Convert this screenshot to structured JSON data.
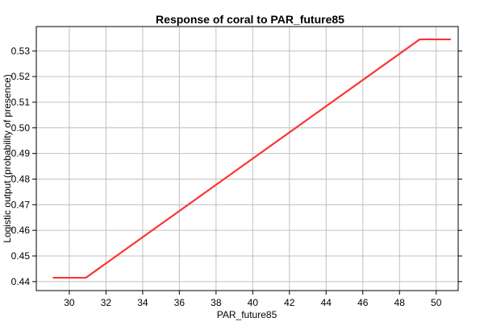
{
  "chart_data": {
    "type": "line",
    "title": "Response of coral to PAR_future85",
    "xlabel": "PAR_future85",
    "ylabel": "Logistic output (probability of presence)",
    "xlim": [
      28.2,
      51.2
    ],
    "ylim": [
      0.4365,
      0.5395
    ],
    "x_ticks": [
      30,
      32,
      34,
      36,
      38,
      40,
      42,
      44,
      46,
      48,
      50
    ],
    "y_ticks": [
      0.44,
      0.45,
      0.46,
      0.47,
      0.48,
      0.49,
      0.5,
      0.51,
      0.52,
      0.53
    ],
    "x_tick_labels": [
      "30",
      "32",
      "34",
      "36",
      "38",
      "40",
      "42",
      "44",
      "46",
      "48",
      "50"
    ],
    "y_tick_labels": [
      "0.44",
      "0.45",
      "0.46",
      "0.47",
      "0.48",
      "0.49",
      "0.50",
      "0.51",
      "0.52",
      "0.53"
    ],
    "grid": true,
    "series": [
      {
        "color": "#ff3333",
        "x": [
          29.1,
          30.9,
          49.1,
          50.8
        ],
        "y": [
          0.4415,
          0.4415,
          0.5345,
          0.5345
        ]
      }
    ]
  }
}
